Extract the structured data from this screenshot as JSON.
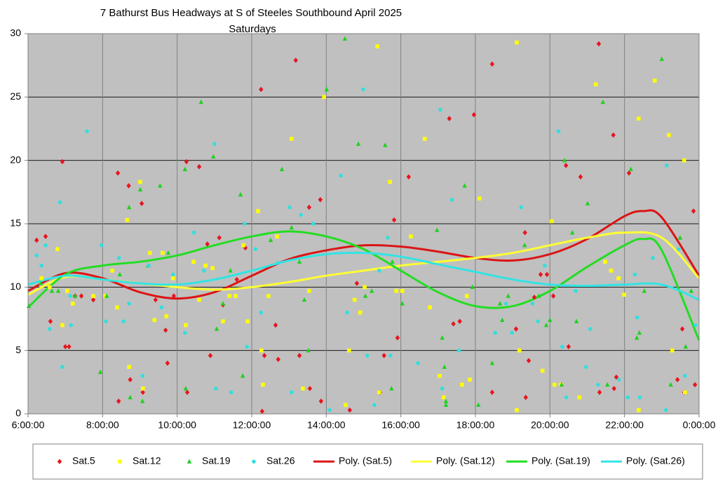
{
  "chart_data": {
    "type": "scatter",
    "title": "7 Bathurst Bus Headways at S of Steeles Southbound April 2025",
    "subtitle": "Saturdays",
    "xlim": [
      6,
      24
    ],
    "xticks": [
      {
        "value": 6,
        "label": "6:00:00"
      },
      {
        "value": 8,
        "label": "8:00:00"
      },
      {
        "value": 10,
        "label": "10:00:00"
      },
      {
        "value": 12,
        "label": "12:00:00"
      },
      {
        "value": 14,
        "label": "14:00:00"
      },
      {
        "value": 16,
        "label": "16:00:00"
      },
      {
        "value": 18,
        "label": "18:00:00"
      },
      {
        "value": 20,
        "label": "20:00:00"
      },
      {
        "value": 22,
        "label": "22:00:00"
      },
      {
        "value": 24,
        "label": "0:00:00"
      }
    ],
    "ylim": [
      0,
      30
    ],
    "yticks": [
      0,
      5,
      10,
      15,
      20,
      25,
      30
    ],
    "grid": true,
    "legend": "bottom",
    "series": [
      {
        "name": "Sat.5",
        "color": "#e8141e",
        "marker": "diamond",
        "x": [
          6.23,
          6.47,
          6.6,
          6.92,
          7.0,
          7.1,
          7.26,
          7.43,
          7.75,
          8.41,
          8.43,
          8.7,
          8.74,
          9.05,
          9.08,
          9.42,
          9.69,
          9.74,
          9.91,
          10.25,
          10.27,
          10.59,
          10.81,
          10.89,
          11.13,
          11.23,
          11.6,
          11.83,
          12.25,
          12.28,
          12.34,
          12.64,
          12.71,
          13.18,
          13.28,
          13.54,
          13.56,
          13.84,
          13.86,
          14.63,
          14.82,
          15.44,
          15.55,
          15.82,
          15.91,
          16.21,
          17.3,
          17.41,
          17.58,
          17.96,
          18.45,
          18.45,
          19.09,
          19.33,
          19.35,
          19.43,
          19.58,
          19.75,
          19.92,
          20.09,
          20.43,
          20.5,
          20.82,
          21.31,
          21.33,
          21.7,
          21.72,
          21.78,
          22.12,
          23.42,
          23.55,
          23.6,
          23.85,
          23.89
        ],
        "values": [
          13.7,
          14.0,
          7.3,
          19.9,
          5.3,
          5.3,
          9.3,
          9.3,
          9.0,
          19.0,
          1.0,
          18.0,
          2.7,
          16.6,
          1.7,
          9.0,
          6.6,
          4.0,
          9.3,
          19.9,
          1.7,
          19.5,
          13.4,
          4.6,
          13.9,
          8.6,
          10.6,
          13.1,
          25.6,
          0.2,
          4.6,
          7.0,
          4.3,
          27.9,
          4.6,
          16.3,
          2.0,
          16.9,
          1.0,
          0.3,
          10.3,
          1.7,
          4.6,
          15.3,
          6.0,
          18.7,
          23.3,
          7.1,
          7.3,
          23.6,
          27.6,
          1.7,
          6.7,
          14.3,
          1.3,
          4.2,
          9.2,
          11.0,
          11.0,
          9.3,
          19.6,
          5.3,
          18.7,
          29.2,
          1.7,
          22.0,
          2.0,
          2.9,
          19.0,
          2.7,
          6.7,
          1.7,
          16.0,
          2.3
        ]
      },
      {
        "name": "Sat.12",
        "color": "#ffff00",
        "marker": "square",
        "x": [
          6.36,
          6.58,
          6.79,
          6.92,
          7.05,
          7.2,
          7.75,
          8.07,
          8.26,
          8.39,
          8.66,
          8.71,
          9.01,
          9.08,
          9.27,
          9.39,
          9.61,
          9.71,
          9.89,
          10.23,
          10.44,
          10.59,
          10.76,
          10.95,
          11.23,
          11.4,
          11.57,
          11.78,
          11.89,
          12.17,
          12.26,
          12.3,
          12.45,
          12.68,
          13.07,
          13.37,
          13.54,
          13.94,
          14.52,
          14.61,
          14.76,
          14.91,
          15.03,
          15.37,
          15.42,
          15.71,
          15.88,
          16.04,
          16.27,
          16.64,
          16.78,
          17.04,
          17.15,
          17.64,
          17.77,
          17.85,
          18.11,
          19.11,
          19.11,
          19.18,
          19.8,
          20.05,
          20.12,
          20.29,
          20.79,
          21.23,
          21.48,
          21.64,
          21.84,
          21.99,
          22.38,
          22.38,
          22.81,
          23.19,
          23.28,
          23.6,
          23.62
        ],
        "values": [
          10.7,
          10.0,
          13.0,
          7.0,
          9.7,
          8.7,
          9.3,
          9.3,
          11.3,
          8.4,
          15.3,
          3.7,
          18.3,
          2.0,
          12.7,
          7.4,
          12.7,
          7.7,
          10.7,
          7.0,
          12.0,
          9.0,
          11.7,
          11.5,
          7.3,
          9.3,
          9.3,
          13.3,
          7.3,
          16.0,
          5.0,
          2.3,
          9.3,
          14.0,
          21.7,
          2.0,
          9.7,
          25.0,
          0.7,
          5.0,
          9.0,
          8.0,
          10.0,
          29.0,
          1.7,
          18.3,
          9.7,
          9.7,
          14.0,
          21.7,
          8.4,
          3.0,
          1.3,
          2.3,
          9.3,
          2.7,
          17.0,
          29.3,
          0.3,
          5.0,
          3.4,
          15.2,
          2.3,
          2.3,
          1.3,
          26.0,
          12.0,
          11.3,
          10.7,
          9.4,
          23.3,
          0.3,
          26.3,
          22.0,
          5.0,
          20.0,
          1.7
        ]
      },
      {
        "name": "Sat.19",
        "color": "#1ed21e",
        "marker": "triangle",
        "x": [
          6.02,
          6.34,
          6.64,
          6.81,
          7.26,
          7.94,
          8.11,
          8.46,
          8.71,
          8.74,
          9.01,
          9.07,
          9.22,
          9.54,
          9.76,
          10.21,
          10.23,
          10.64,
          10.97,
          11.06,
          11.23,
          11.43,
          11.7,
          11.76,
          12.51,
          12.81,
          13.07,
          13.28,
          13.41,
          13.52,
          14.01,
          14.5,
          14.86,
          15.05,
          15.22,
          15.58,
          15.75,
          15.77,
          16.04,
          16.97,
          17.11,
          17.17,
          17.21,
          17.21,
          17.71,
          17.92,
          18.08,
          18.45,
          18.66,
          18.72,
          18.88,
          19.32,
          19.7,
          19.9,
          20.0,
          20.31,
          20.39,
          20.6,
          20.71,
          21.01,
          21.42,
          21.54,
          22.17,
          22.33,
          22.4,
          22.53,
          23.0,
          23.24,
          23.49,
          23.64,
          23.79
        ],
        "values": [
          8.5,
          10.3,
          9.7,
          9.7,
          9.3,
          3.3,
          9.3,
          11.0,
          16.3,
          1.3,
          17.7,
          1.0,
          11.7,
          18.0,
          12.7,
          19.3,
          2.0,
          24.6,
          20.3,
          6.7,
          8.7,
          11.3,
          17.3,
          3.0,
          13.7,
          19.3,
          14.7,
          12.0,
          9.0,
          5.0,
          25.6,
          29.6,
          21.3,
          9.3,
          9.7,
          21.2,
          2.0,
          12.0,
          8.7,
          14.5,
          6.0,
          3.7,
          1.0,
          0.7,
          18.0,
          10.0,
          0.7,
          4.0,
          8.7,
          7.4,
          9.3,
          13.3,
          9.3,
          7.0,
          7.4,
          2.3,
          20.0,
          14.3,
          7.3,
          16.6,
          24.6,
          2.3,
          19.3,
          6.0,
          6.4,
          9.7,
          28.0,
          2.3,
          13.9,
          5.3,
          9.7
        ]
      },
      {
        "name": "Sat.26",
        "color": "#33dede",
        "marker": "circle",
        "x": [
          6.23,
          6.36,
          6.47,
          6.58,
          6.86,
          6.92,
          7.13,
          7.15,
          7.58,
          7.97,
          8.09,
          8.44,
          8.56,
          8.71,
          9.07,
          9.24,
          9.58,
          9.89,
          10.21,
          10.45,
          10.72,
          11.0,
          11.04,
          11.45,
          11.81,
          11.87,
          12.1,
          12.25,
          12.7,
          13.02,
          13.07,
          13.32,
          13.65,
          14.09,
          14.39,
          14.56,
          14.99,
          15.1,
          15.29,
          15.42,
          15.65,
          15.72,
          16.46,
          17.06,
          17.11,
          17.37,
          17.56,
          18.53,
          18.82,
          18.98,
          19.23,
          19.53,
          19.68,
          19.86,
          20.23,
          20.33,
          20.44,
          20.69,
          20.97,
          21.08,
          21.29,
          21.85,
          22.09,
          22.28,
          22.34,
          22.41,
          22.76,
          23.11,
          23.13,
          23.45,
          23.62,
          23.9
        ],
        "values": [
          12.5,
          11.7,
          13.3,
          6.7,
          16.7,
          3.7,
          9.3,
          7.0,
          22.3,
          13.3,
          7.3,
          12.3,
          7.3,
          8.7,
          3.0,
          11.7,
          8.4,
          11.0,
          6.4,
          14.3,
          11.3,
          21.3,
          2.0,
          1.7,
          15.0,
          5.3,
          13.0,
          8.0,
          11.9,
          16.3,
          1.7,
          15.7,
          15.0,
          0.3,
          18.8,
          8.0,
          25.6,
          4.6,
          0.7,
          11.3,
          13.9,
          4.6,
          4.0,
          24.0,
          2.0,
          16.9,
          5.0,
          6.4,
          8.7,
          6.4,
          16.3,
          8.7,
          7.3,
          11.7,
          22.3,
          5.3,
          1.3,
          9.7,
          3.7,
          6.7,
          2.3,
          2.7,
          1.3,
          11.0,
          7.6,
          1.3,
          12.3,
          0.3,
          19.6,
          13.0,
          3.0,
          7.0
        ]
      }
    ],
    "trendlines": [
      {
        "name": "Poly. (Sat.5)",
        "color": "#dc1414",
        "x": [
          6,
          7,
          8,
          9,
          10,
          11,
          12,
          13,
          14,
          15,
          16,
          17,
          18,
          19,
          20,
          21,
          22,
          22.5,
          23,
          24
        ],
        "values": [
          9.7,
          11.1,
          10.7,
          9.6,
          9.1,
          9.6,
          10.9,
          12.2,
          12.9,
          13.3,
          13.2,
          12.8,
          12.3,
          12.1,
          12.6,
          13.8,
          15.6,
          16.0,
          15.5,
          10.9
        ]
      },
      {
        "name": "Poly. (Sat.12)",
        "color": "#ffff33",
        "x": [
          6,
          7,
          8,
          9,
          10,
          11,
          12,
          13,
          14,
          15,
          16,
          17,
          18,
          19,
          20,
          21,
          22,
          23,
          24
        ],
        "values": [
          9.4,
          10.8,
          10.6,
          10.3,
          10.0,
          9.8,
          10.0,
          10.4,
          10.9,
          11.3,
          11.7,
          12.0,
          12.3,
          12.7,
          13.3,
          13.9,
          14.3,
          13.9,
          10.7
        ]
      },
      {
        "name": "Poly. (Sat.19)",
        "color": "#22dd22",
        "x": [
          6,
          7,
          8,
          9,
          10,
          11,
          12,
          13,
          14,
          15,
          16,
          17,
          18,
          19,
          20,
          21,
          22,
          22.5,
          23,
          24
        ],
        "values": [
          8.4,
          11.0,
          11.7,
          12.0,
          12.5,
          13.3,
          14.0,
          14.4,
          14.0,
          13.0,
          11.3,
          9.6,
          8.5,
          8.5,
          9.7,
          11.6,
          13.3,
          13.8,
          12.9,
          5.8
        ]
      },
      {
        "name": "Poly. (Sat.26)",
        "color": "#33e3e3",
        "x": [
          6,
          7,
          8,
          9,
          10,
          11,
          12,
          13,
          14,
          15,
          16,
          17,
          18,
          19,
          20,
          21,
          22,
          23,
          24
        ],
        "values": [
          10.2,
          10.9,
          10.6,
          10.3,
          10.2,
          10.6,
          11.3,
          12.1,
          12.6,
          12.7,
          12.4,
          11.8,
          11.2,
          10.6,
          10.2,
          10.1,
          10.2,
          10.2,
          9.0
        ]
      }
    ]
  }
}
